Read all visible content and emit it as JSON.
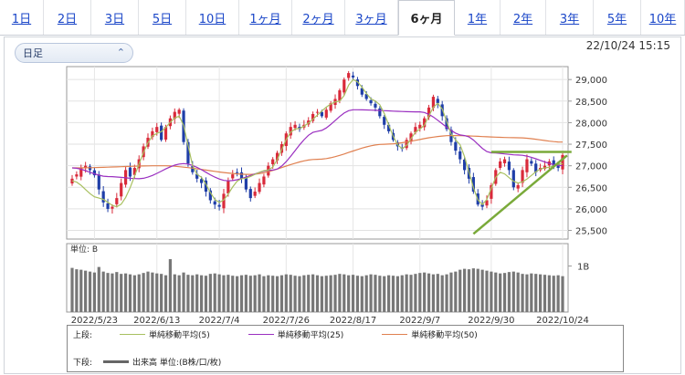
{
  "tabs": [
    "1日",
    "2日",
    "3日",
    "5日",
    "10日",
    "1ヶ月",
    "2ヶ月",
    "3ヶ月",
    "6ヶ月",
    "1年",
    "2年",
    "3年",
    "5年",
    "10年"
  ],
  "active_tab": "6ヶ月",
  "period_select": {
    "value": "日足",
    "icon": "chevron-updown-icon"
  },
  "datetime": "22/10/24 15:15",
  "colors": {
    "up": "#d92a3a",
    "down": "#1f3ea8",
    "ma5": "#a8c060",
    "ma25": "#9a2fc0",
    "ma50": "#e08050",
    "trend": "#7aaa3a",
    "volume": "#777777"
  },
  "volume_panel": {
    "unit_label": "単位: B",
    "tick": "1B"
  },
  "legend": {
    "upper_label": "上段:",
    "lower_label": "下段:",
    "ma5": "単純移動平均(5)",
    "ma25": "単純移動平均(25)",
    "ma50": "単純移動平均(50)",
    "volume": "出来高 単位:(B株/口/枚)"
  },
  "chart_data": {
    "type": "candlestick",
    "ylim": [
      25300,
      29300
    ],
    "y_ticks": [
      25500,
      26000,
      26500,
      27000,
      27500,
      28000,
      28500,
      29000
    ],
    "y_tick_labels": [
      "25,500",
      "26,000",
      "26,500",
      "27,000",
      "27,500",
      "28,000",
      "28,500",
      "29,000"
    ],
    "x_tick_labels": [
      "2022/5/23",
      "2022/6/13",
      "2022/7/4",
      "2022/7/26",
      "2022/8/17",
      "2022/9/7",
      "2022/9/30",
      "2022/10/24"
    ],
    "x_tick_index": [
      5,
      19,
      33,
      48,
      63,
      78,
      94,
      110
    ],
    "close": [
      26700,
      26800,
      26950,
      27000,
      26900,
      26780,
      26450,
      26150,
      26000,
      26050,
      26250,
      26600,
      26900,
      26750,
      26950,
      27150,
      27450,
      27650,
      27800,
      27900,
      27600,
      27900,
      28100,
      28250,
      28300,
      27550,
      27050,
      26850,
      26700,
      26600,
      26400,
      26200,
      26100,
      26050,
      26350,
      26650,
      26800,
      26850,
      26700,
      26450,
      26250,
      26400,
      26600,
      26750,
      27000,
      27150,
      27300,
      27500,
      27750,
      27900,
      27950,
      27850,
      27950,
      28050,
      28200,
      28250,
      28150,
      28300,
      28450,
      28550,
      28750,
      29000,
      29150,
      29050,
      28850,
      28650,
      28550,
      28450,
      28350,
      28150,
      27950,
      27800,
      27600,
      27450,
      27400,
      27600,
      27750,
      27900,
      27950,
      28100,
      28350,
      28600,
      28450,
      28150,
      27850,
      27550,
      27350,
      27150,
      26900,
      26700,
      26400,
      26100,
      26050,
      26200,
      26550,
      26900,
      27100,
      27150,
      26900,
      26500,
      26550,
      26900,
      27150,
      27050,
      26850,
      26950,
      27000,
      27100,
      27000,
      26950,
      27250
    ],
    "ma5_anchor": [
      [
        0,
        26650
      ],
      [
        6,
        26250
      ],
      [
        10,
        26050
      ],
      [
        19,
        27750
      ],
      [
        24,
        28150
      ],
      [
        28,
        26800
      ],
      [
        33,
        26150
      ],
      [
        38,
        26700
      ],
      [
        44,
        26900
      ],
      [
        50,
        27850
      ],
      [
        60,
        28500
      ],
      [
        63,
        29000
      ],
      [
        68,
        28500
      ],
      [
        74,
        27400
      ],
      [
        78,
        27850
      ],
      [
        82,
        28450
      ],
      [
        86,
        27600
      ],
      [
        92,
        26100
      ],
      [
        96,
        26850
      ],
      [
        100,
        26600
      ],
      [
        106,
        26950
      ],
      [
        110,
        27050
      ]
    ],
    "ma25_anchor": [
      [
        0,
        26950
      ],
      [
        8,
        26750
      ],
      [
        15,
        26700
      ],
      [
        25,
        27050
      ],
      [
        35,
        26650
      ],
      [
        45,
        26900
      ],
      [
        55,
        27800
      ],
      [
        63,
        28300
      ],
      [
        78,
        28250
      ],
      [
        88,
        27700
      ],
      [
        94,
        27300
      ],
      [
        100,
        27250
      ],
      [
        110,
        27000
      ]
    ],
    "ma50_anchor": [
      [
        0,
        26950
      ],
      [
        20,
        27000
      ],
      [
        40,
        26800
      ],
      [
        55,
        27150
      ],
      [
        70,
        27500
      ],
      [
        85,
        27700
      ],
      [
        100,
        27650
      ],
      [
        110,
        27550
      ]
    ],
    "volume": [
      0.96,
      0.93,
      0.92,
      0.9,
      0.88,
      0.86,
      0.98,
      0.88,
      0.85,
      0.84,
      0.87,
      0.83,
      0.84,
      0.82,
      0.8,
      0.82,
      0.85,
      0.88,
      0.86,
      0.84,
      0.83,
      0.8,
      1.15,
      0.82,
      0.8,
      0.86,
      0.81,
      0.8,
      0.82,
      0.8,
      0.79,
      0.83,
      0.84,
      0.82,
      0.8,
      0.81,
      0.79,
      0.78,
      0.8,
      0.81,
      0.79,
      0.8,
      0.82,
      0.78,
      0.8,
      0.79,
      0.78,
      0.8,
      0.82,
      0.81,
      0.79,
      0.78,
      0.8,
      0.81,
      0.82,
      0.8,
      0.78,
      0.79,
      0.8,
      0.81,
      0.83,
      0.82,
      0.8,
      0.81,
      0.79,
      0.78,
      0.8,
      0.82,
      0.81,
      0.79,
      0.78,
      0.8,
      0.79,
      0.78,
      0.8,
      0.82,
      0.81,
      0.83,
      0.85,
      0.86,
      0.84,
      0.82,
      0.83,
      0.8,
      0.82,
      0.86,
      0.88,
      0.92,
      0.94,
      0.93,
      0.95,
      0.94,
      0.92,
      0.9,
      0.88,
      0.86,
      0.84,
      0.85,
      0.87,
      0.88,
      0.86,
      0.83,
      0.82,
      0.84,
      0.83,
      0.82,
      0.81,
      0.8,
      0.79,
      0.8,
      0.78
    ],
    "trendline_upper": [
      [
        94,
        27320
      ],
      [
        112,
        27320
      ]
    ],
    "trendline_lower": [
      [
        90,
        25420
      ],
      [
        111,
        27240
      ]
    ]
  }
}
